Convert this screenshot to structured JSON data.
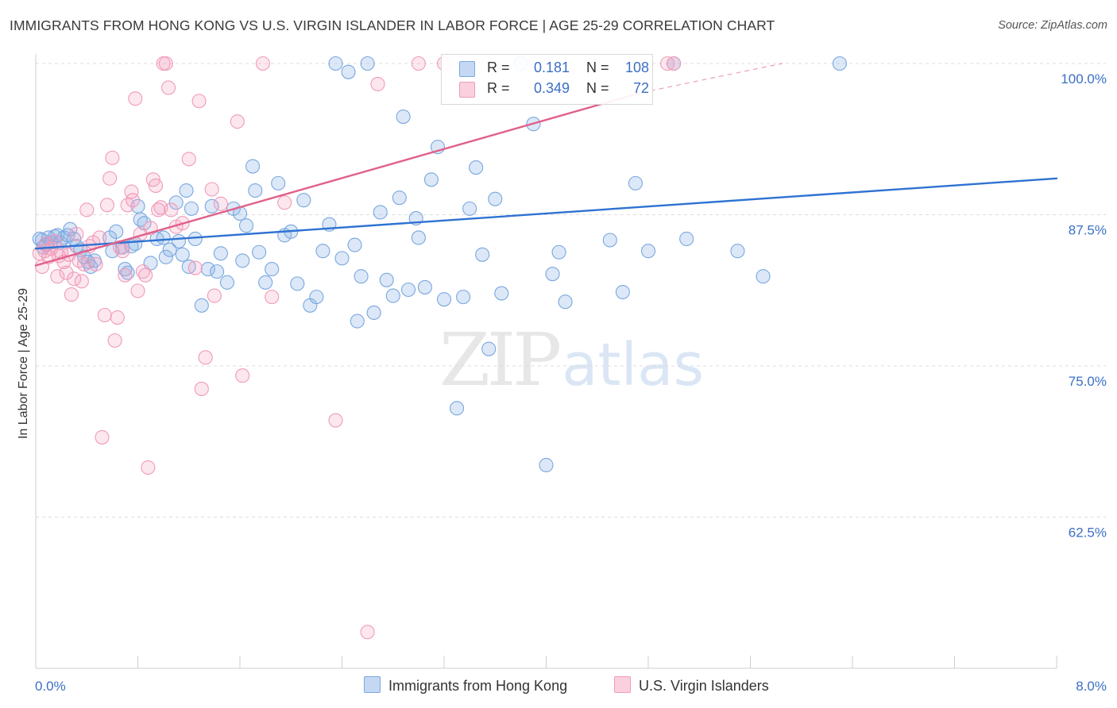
{
  "title": "IMMIGRANTS FROM HONG KONG VS U.S. VIRGIN ISLANDER IN LABOR FORCE | AGE 25-29 CORRELATION CHART",
  "source": "Source: ZipAtlas.com",
  "watermark": {
    "zip": "ZIP",
    "atlas": "atlas"
  },
  "legend_top": {
    "r_label": "R =",
    "n_label": "N =",
    "rows": [
      {
        "r": "0.181",
        "n": "108",
        "color": "#a8c4ec"
      },
      {
        "r": "0.349",
        "n": "72",
        "color": "#f6b6ca"
      }
    ]
  },
  "legend_bottom": [
    "Immigrants from Hong Kong",
    "U.S. Virgin Islanders"
  ],
  "chart_data": {
    "type": "scatter",
    "xlabel": "",
    "ylabel": "In Labor Force | Age 25-29",
    "xlim": [
      0,
      8
    ],
    "ylim": [
      50,
      100
    ],
    "x_tick_labels": [
      "0.0%",
      "8.0%"
    ],
    "y_tick_labels": [
      "100.0%",
      "87.5%",
      "75.0%",
      "62.5%"
    ],
    "y_ticks": [
      100,
      87.5,
      75,
      62.5
    ],
    "grid": true,
    "legend_position": "top-center",
    "series": [
      {
        "name": "Immigrants from Hong Kong",
        "color": "#7aa7e0",
        "trend_color": "#2e72d2",
        "R": 0.181,
        "N": 108,
        "trend": {
          "x": [
            0,
            8
          ],
          "y": [
            84.7,
            90.5
          ]
        },
        "points": [
          [
            0.03,
            85.5
          ],
          [
            0.05,
            85.4
          ],
          [
            0.06,
            84.8
          ],
          [
            0.08,
            85.0
          ],
          [
            0.1,
            85.6
          ],
          [
            0.12,
            85.2
          ],
          [
            0.15,
            85.7
          ],
          [
            0.17,
            85.8
          ],
          [
            0.19,
            85.2
          ],
          [
            0.22,
            85.6
          ],
          [
            0.25,
            85.8
          ],
          [
            0.27,
            86.3
          ],
          [
            0.3,
            85.5
          ],
          [
            0.32,
            84.9
          ],
          [
            0.35,
            84.6
          ],
          [
            0.38,
            84.0
          ],
          [
            0.41,
            83.6
          ],
          [
            0.43,
            83.2
          ],
          [
            0.46,
            83.7
          ],
          [
            0.58,
            85.6
          ],
          [
            0.6,
            84.5
          ],
          [
            0.63,
            86.1
          ],
          [
            0.68,
            84.8
          ],
          [
            0.7,
            83.0
          ],
          [
            0.72,
            82.7
          ],
          [
            0.75,
            84.9
          ],
          [
            0.78,
            85.1
          ],
          [
            0.8,
            88.2
          ],
          [
            0.82,
            87.1
          ],
          [
            0.85,
            86.8
          ],
          [
            0.9,
            83.5
          ],
          [
            0.95,
            85.5
          ],
          [
            1.0,
            85.6
          ],
          [
            1.02,
            84.0
          ],
          [
            1.05,
            84.6
          ],
          [
            1.1,
            88.5
          ],
          [
            1.12,
            85.3
          ],
          [
            1.15,
            84.2
          ],
          [
            1.18,
            89.5
          ],
          [
            1.2,
            83.2
          ],
          [
            1.22,
            88.0
          ],
          [
            1.25,
            85.5
          ],
          [
            1.3,
            80.0
          ],
          [
            1.35,
            83.0
          ],
          [
            1.38,
            88.2
          ],
          [
            1.42,
            82.8
          ],
          [
            1.45,
            84.3
          ],
          [
            1.5,
            81.9
          ],
          [
            1.55,
            88.0
          ],
          [
            1.6,
            87.6
          ],
          [
            1.62,
            83.7
          ],
          [
            1.65,
            86.6
          ],
          [
            1.7,
            91.5
          ],
          [
            1.72,
            89.5
          ],
          [
            1.75,
            84.4
          ],
          [
            1.8,
            81.9
          ],
          [
            1.85,
            83.0
          ],
          [
            1.9,
            90.1
          ],
          [
            1.95,
            85.8
          ],
          [
            2.0,
            86.1
          ],
          [
            2.05,
            81.8
          ],
          [
            2.1,
            88.7
          ],
          [
            2.15,
            80.0
          ],
          [
            2.2,
            80.7
          ],
          [
            2.25,
            84.5
          ],
          [
            2.3,
            86.7
          ],
          [
            2.35,
            100.0
          ],
          [
            2.4,
            83.9
          ],
          [
            2.45,
            99.3
          ],
          [
            2.5,
            85.0
          ],
          [
            2.52,
            78.7
          ],
          [
            2.55,
            82.4
          ],
          [
            2.6,
            100.0
          ],
          [
            2.65,
            79.4
          ],
          [
            2.7,
            87.7
          ],
          [
            2.75,
            82.1
          ],
          [
            2.8,
            80.8
          ],
          [
            2.85,
            88.9
          ],
          [
            2.88,
            95.6
          ],
          [
            2.92,
            81.3
          ],
          [
            2.98,
            87.2
          ],
          [
            3.0,
            85.6
          ],
          [
            3.05,
            81.5
          ],
          [
            3.1,
            90.4
          ],
          [
            3.15,
            93.1
          ],
          [
            3.2,
            80.5
          ],
          [
            3.3,
            71.5
          ],
          [
            3.35,
            80.7
          ],
          [
            3.4,
            88.0
          ],
          [
            3.45,
            91.4
          ],
          [
            3.5,
            84.2
          ],
          [
            3.55,
            76.4
          ],
          [
            3.6,
            88.8
          ],
          [
            3.65,
            81.0
          ],
          [
            3.8,
            100.0
          ],
          [
            3.9,
            95.0
          ],
          [
            4.0,
            66.8
          ],
          [
            4.05,
            82.6
          ],
          [
            4.1,
            84.4
          ],
          [
            4.15,
            80.3
          ],
          [
            4.5,
            85.4
          ],
          [
            4.6,
            81.1
          ],
          [
            4.7,
            90.1
          ],
          [
            4.8,
            84.5
          ],
          [
            5.0,
            100.0
          ],
          [
            5.1,
            85.5
          ],
          [
            5.5,
            84.5
          ],
          [
            5.7,
            82.4
          ],
          [
            6.3,
            100.0
          ]
        ]
      },
      {
        "name": "U.S. Virgin Islanders",
        "color": "#f09ab8",
        "trend_color": "#e0608a",
        "R": 0.349,
        "N": 72,
        "trend": {
          "x": [
            0,
            4.75
          ],
          "y": [
            83.3,
            97.6
          ]
        },
        "trend_dashed": {
          "x": [
            4.75,
            5.85
          ],
          "y": [
            97.6,
            100.0
          ]
        },
        "points": [
          [
            0.03,
            84.3
          ],
          [
            0.05,
            83.2
          ],
          [
            0.07,
            84.5
          ],
          [
            0.08,
            85.1
          ],
          [
            0.1,
            84.0
          ],
          [
            0.12,
            84.7
          ],
          [
            0.15,
            85.3
          ],
          [
            0.17,
            82.4
          ],
          [
            0.18,
            84.1
          ],
          [
            0.2,
            84.4
          ],
          [
            0.22,
            83.6
          ],
          [
            0.24,
            82.7
          ],
          [
            0.26,
            84.2
          ],
          [
            0.28,
            80.9
          ],
          [
            0.3,
            82.2
          ],
          [
            0.32,
            85.9
          ],
          [
            0.34,
            83.7
          ],
          [
            0.36,
            82.0
          ],
          [
            0.38,
            83.4
          ],
          [
            0.4,
            87.9
          ],
          [
            0.42,
            84.9
          ],
          [
            0.45,
            85.2
          ],
          [
            0.47,
            83.4
          ],
          [
            0.5,
            85.6
          ],
          [
            0.52,
            69.1
          ],
          [
            0.54,
            79.2
          ],
          [
            0.56,
            88.3
          ],
          [
            0.58,
            90.5
          ],
          [
            0.6,
            92.2
          ],
          [
            0.62,
            77.1
          ],
          [
            0.64,
            79.0
          ],
          [
            0.66,
            84.8
          ],
          [
            0.68,
            84.5
          ],
          [
            0.7,
            82.5
          ],
          [
            0.72,
            88.3
          ],
          [
            0.75,
            89.4
          ],
          [
            0.76,
            88.7
          ],
          [
            0.78,
            97.1
          ],
          [
            0.8,
            81.2
          ],
          [
            0.82,
            85.9
          ],
          [
            0.84,
            82.8
          ],
          [
            0.86,
            82.5
          ],
          [
            0.88,
            66.6
          ],
          [
            0.9,
            86.4
          ],
          [
            0.92,
            90.4
          ],
          [
            0.94,
            89.9
          ],
          [
            0.96,
            87.9
          ],
          [
            0.98,
            88.1
          ],
          [
            1.0,
            100.0
          ],
          [
            1.02,
            100.0
          ],
          [
            1.04,
            98.0
          ],
          [
            1.06,
            87.9
          ],
          [
            1.1,
            86.5
          ],
          [
            1.15,
            86.8
          ],
          [
            1.2,
            92.1
          ],
          [
            1.25,
            83.1
          ],
          [
            1.28,
            96.9
          ],
          [
            1.3,
            73.1
          ],
          [
            1.33,
            75.7
          ],
          [
            1.38,
            89.6
          ],
          [
            1.4,
            80.8
          ],
          [
            1.45,
            88.4
          ],
          [
            1.58,
            95.2
          ],
          [
            1.62,
            74.2
          ],
          [
            1.78,
            100.0
          ],
          [
            1.85,
            80.7
          ],
          [
            1.95,
            88.5
          ],
          [
            2.35,
            70.5
          ],
          [
            2.6,
            53.0
          ],
          [
            2.68,
            98.3
          ],
          [
            3.0,
            100.0
          ],
          [
            3.2,
            100.0
          ],
          [
            4.95,
            100.0
          ],
          [
            5.0,
            100.0
          ]
        ]
      }
    ]
  }
}
